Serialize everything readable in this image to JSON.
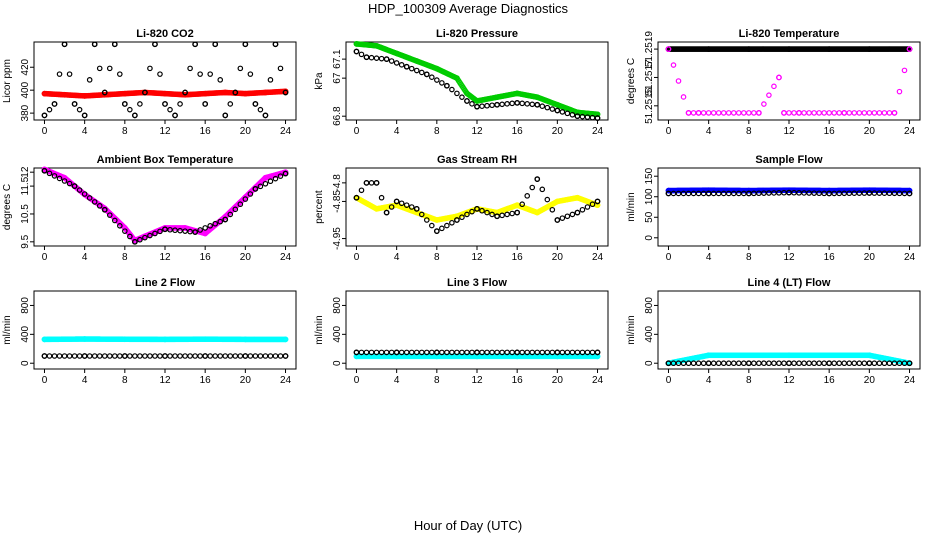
{
  "title": "HDP_100309  Average Diagnostics",
  "xlabel": "Hour of Day (UTC)",
  "colors": {
    "black": "#000000",
    "red": "#ff0000",
    "green": "#00cc00",
    "magenta": "#ff00ff",
    "yellow": "#ffff00",
    "blue": "#0000ff",
    "cyan": "#00ffff"
  },
  "chart_data": [
    {
      "type": "scatter",
      "title": "Li-820 CO2",
      "ylabel": "Licor ppm",
      "xlim": [
        0,
        24
      ],
      "xticks": [
        0,
        4,
        8,
        12,
        16,
        20,
        24
      ],
      "ylim": [
        374,
        442
      ],
      "yticks": [
        380,
        400,
        420
      ],
      "series": [
        {
          "color": "red",
          "values": [
            [
              0,
              397
            ],
            [
              2,
              396
            ],
            [
              4,
              395
            ],
            [
              6,
              396
            ],
            [
              8,
              397
            ],
            [
              10,
              398
            ],
            [
              12,
              397
            ],
            [
              14,
              396
            ],
            [
              16,
              397
            ],
            [
              18,
              398
            ],
            [
              20,
              397
            ],
            [
              22,
              398
            ],
            [
              24,
              399
            ]
          ]
        },
        {
          "color": "black",
          "values": [
            [
              0,
              378
            ],
            [
              1,
              388
            ],
            [
              2,
              440
            ],
            [
              3,
              388
            ],
            [
              4,
              378
            ],
            [
              5,
              440
            ],
            [
              6,
              398
            ],
            [
              7,
              440
            ],
            [
              8,
              388
            ],
            [
              9,
              378
            ],
            [
              10,
              398
            ],
            [
              11,
              440
            ],
            [
              12,
              388
            ],
            [
              13,
              378
            ],
            [
              14,
              398
            ],
            [
              15,
              440
            ],
            [
              16,
              388
            ],
            [
              17,
              440
            ],
            [
              18,
              378
            ],
            [
              19,
              398
            ],
            [
              20,
              440
            ],
            [
              21,
              388
            ],
            [
              22,
              378
            ],
            [
              23,
              440
            ],
            [
              24,
              398
            ]
          ]
        }
      ]
    },
    {
      "type": "scatter",
      "title": "Li-820 Pressure",
      "ylabel": "kPa",
      "xlim": [
        0,
        24
      ],
      "xticks": [
        0,
        4,
        8,
        12,
        16,
        20,
        24
      ],
      "ylim": [
        66.78,
        67.19
      ],
      "yticks": [
        66.8,
        67.0,
        67.1
      ],
      "series": [
        {
          "color": "green",
          "values": [
            [
              0,
              67.18
            ],
            [
              2,
              67.17
            ],
            [
              4,
              67.13
            ],
            [
              6,
              67.09
            ],
            [
              8,
              67.05
            ],
            [
              10,
              67.0
            ],
            [
              11,
              66.92
            ],
            [
              12,
              66.88
            ],
            [
              14,
              66.9
            ],
            [
              16,
              66.92
            ],
            [
              18,
              66.9
            ],
            [
              20,
              66.86
            ],
            [
              22,
              66.82
            ],
            [
              24,
              66.81
            ]
          ]
        },
        {
          "color": "black",
          "values": [
            [
              0,
              67.14
            ],
            [
              1,
              67.11
            ],
            [
              3,
              67.1
            ],
            [
              5,
              67.06
            ],
            [
              7,
              67.02
            ],
            [
              9,
              66.96
            ],
            [
              11,
              66.88
            ],
            [
              12,
              66.85
            ],
            [
              14,
              66.86
            ],
            [
              16,
              66.87
            ],
            [
              18,
              66.86
            ],
            [
              20,
              66.83
            ],
            [
              22,
              66.8
            ],
            [
              24,
              66.79
            ]
          ]
        }
      ]
    },
    {
      "type": "scatter",
      "title": "Li-820 Temperature",
      "ylabel": "degrees C",
      "xlim": [
        0,
        24
      ],
      "xticks": [
        0,
        4,
        8,
        12,
        16,
        20,
        24
      ],
      "ylim": [
        51.2514,
        51.25195
      ],
      "yticks": [
        51.2515,
        51.2517,
        51.2519
      ],
      "series": [
        {
          "color": "black",
          "values": [
            [
              0,
              51.2519
            ],
            [
              4,
              51.2519
            ],
            [
              8,
              51.2519
            ],
            [
              12,
              51.2519
            ],
            [
              16,
              51.2519
            ],
            [
              20,
              51.2519
            ],
            [
              24,
              51.2519
            ]
          ]
        },
        {
          "color": "magenta",
          "values": [
            [
              0,
              51.2519
            ],
            [
              2,
              51.25145
            ],
            [
              3,
              51.25145
            ],
            [
              9,
              51.25145
            ],
            [
              11,
              51.2517
            ],
            [
              11.5,
              51.25145
            ],
            [
              13,
              51.25145
            ],
            [
              17.5,
              51.25145
            ],
            [
              22.5,
              51.25145
            ],
            [
              24,
              51.2519
            ]
          ]
        }
      ]
    },
    {
      "type": "scatter",
      "title": "Ambient Box Temperature",
      "ylabel": "degrees C",
      "xlim": [
        0,
        24
      ],
      "xticks": [
        0,
        4,
        8,
        12,
        16,
        20,
        24
      ],
      "ylim": [
        9.35,
        12.15
      ],
      "yticks": [
        9.5,
        10.5,
        11.5,
        12.0
      ],
      "series": [
        {
          "color": "magenta",
          "values": [
            [
              0,
              12.1
            ],
            [
              2,
              11.8
            ],
            [
              4,
              11.2
            ],
            [
              6,
              10.7
            ],
            [
              8,
              10.0
            ],
            [
              9,
              9.55
            ],
            [
              10,
              9.7
            ],
            [
              12,
              10.0
            ],
            [
              14,
              10.0
            ],
            [
              16,
              9.8
            ],
            [
              18,
              10.4
            ],
            [
              20,
              11.1
            ],
            [
              22,
              11.8
            ],
            [
              24,
              12.0
            ]
          ]
        },
        {
          "color": "black",
          "values": [
            [
              0,
              12.05
            ],
            [
              3,
              11.5
            ],
            [
              6,
              10.65
            ],
            [
              9,
              9.5
            ],
            [
              12,
              9.95
            ],
            [
              15,
              9.85
            ],
            [
              18,
              10.3
            ],
            [
              21,
              11.4
            ],
            [
              24,
              11.95
            ]
          ]
        }
      ]
    },
    {
      "type": "scatter",
      "title": "Gas Stream RH",
      "ylabel": "percent",
      "xlim": [
        0,
        24
      ],
      "xticks": [
        0,
        4,
        8,
        12,
        16,
        20,
        24
      ],
      "ylim": [
        -4.97,
        -4.76
      ],
      "yticks": [
        -4.95,
        -4.85,
        -4.8
      ],
      "series": [
        {
          "color": "yellow",
          "values": [
            [
              0,
              -4.84
            ],
            [
              2,
              -4.87
            ],
            [
              4,
              -4.86
            ],
            [
              6,
              -4.88
            ],
            [
              8,
              -4.9
            ],
            [
              10,
              -4.89
            ],
            [
              12,
              -4.87
            ],
            [
              14,
              -4.88
            ],
            [
              16,
              -4.86
            ],
            [
              18,
              -4.88
            ],
            [
              20,
              -4.85
            ],
            [
              22,
              -4.84
            ],
            [
              24,
              -4.86
            ]
          ]
        },
        {
          "color": "black",
          "values": [
            [
              0,
              -4.84
            ],
            [
              1,
              -4.8
            ],
            [
              2,
              -4.8
            ],
            [
              3,
              -4.88
            ],
            [
              4,
              -4.85
            ],
            [
              6,
              -4.87
            ],
            [
              8,
              -4.93
            ],
            [
              10,
              -4.9
            ],
            [
              12,
              -4.87
            ],
            [
              14,
              -4.89
            ],
            [
              16,
              -4.88
            ],
            [
              18,
              -4.79
            ],
            [
              20,
              -4.9
            ],
            [
              22,
              -4.88
            ],
            [
              24,
              -4.85
            ]
          ]
        }
      ]
    },
    {
      "type": "scatter",
      "title": "Sample Flow",
      "ylabel": "ml/min",
      "xlim": [
        0,
        24
      ],
      "xticks": [
        0,
        4,
        8,
        12,
        16,
        20,
        24
      ],
      "ylim": [
        -20,
        170
      ],
      "yticks": [
        0,
        50,
        100,
        150
      ],
      "series": [
        {
          "color": "blue",
          "values": [
            [
              0,
              115
            ],
            [
              4,
              116
            ],
            [
              8,
              115
            ],
            [
              12,
              116
            ],
            [
              16,
              115
            ],
            [
              20,
              116
            ],
            [
              24,
              115
            ]
          ]
        },
        {
          "color": "black",
          "values": [
            [
              0,
              108
            ],
            [
              4,
              108
            ],
            [
              8,
              108
            ],
            [
              12,
              110
            ],
            [
              16,
              108
            ],
            [
              20,
              109
            ],
            [
              24,
              108
            ]
          ]
        }
      ]
    },
    {
      "type": "scatter",
      "title": "Line 2 Flow",
      "ylabel": "ml/min",
      "xlim": [
        0,
        24
      ],
      "xticks": [
        0,
        4,
        8,
        12,
        16,
        20,
        24
      ],
      "ylim": [
        -80,
        1000
      ],
      "yticks": [
        0,
        400,
        800
      ],
      "series": [
        {
          "color": "cyan",
          "values": [
            [
              0,
              330
            ],
            [
              4,
              335
            ],
            [
              8,
              332
            ],
            [
              12,
              330
            ],
            [
              16,
              333
            ],
            [
              20,
              330
            ],
            [
              24,
              330
            ]
          ]
        },
        {
          "color": "black",
          "values": [
            [
              0,
              100
            ],
            [
              4,
              100
            ],
            [
              8,
              100
            ],
            [
              12,
              100
            ],
            [
              16,
              100
            ],
            [
              20,
              100
            ],
            [
              24,
              100
            ]
          ]
        }
      ]
    },
    {
      "type": "scatter",
      "title": "Line 3 Flow",
      "ylabel": "ml/min",
      "xlim": [
        0,
        24
      ],
      "xticks": [
        0,
        4,
        8,
        12,
        16,
        20,
        24
      ],
      "ylim": [
        -80,
        1000
      ],
      "yticks": [
        0,
        400,
        800
      ],
      "series": [
        {
          "color": "cyan",
          "values": [
            [
              0,
              95
            ],
            [
              4,
              95
            ],
            [
              8,
              95
            ],
            [
              12,
              95
            ],
            [
              16,
              95
            ],
            [
              20,
              95
            ],
            [
              24,
              95
            ]
          ]
        },
        {
          "color": "black",
          "values": [
            [
              0,
              150
            ],
            [
              4,
              150
            ],
            [
              8,
              150
            ],
            [
              12,
              150
            ],
            [
              16,
              150
            ],
            [
              20,
              150
            ],
            [
              24,
              150
            ]
          ]
        }
      ]
    },
    {
      "type": "scatter",
      "title": "Line 4 (LT) Flow",
      "ylabel": "ml/min",
      "xlim": [
        0,
        24
      ],
      "xticks": [
        0,
        4,
        8,
        12,
        16,
        20,
        24
      ],
      "ylim": [
        -80,
        1000
      ],
      "yticks": [
        0,
        400,
        800
      ],
      "series": [
        {
          "color": "cyan",
          "values": [
            [
              0,
              0
            ],
            [
              4,
              110
            ],
            [
              12,
              110
            ],
            [
              20,
              110
            ],
            [
              24,
              0
            ]
          ]
        },
        {
          "color": "black",
          "values": [
            [
              0,
              0
            ],
            [
              4,
              0
            ],
            [
              8,
              0
            ],
            [
              12,
              0
            ],
            [
              16,
              0
            ],
            [
              20,
              0
            ],
            [
              24,
              0
            ]
          ]
        }
      ]
    }
  ]
}
